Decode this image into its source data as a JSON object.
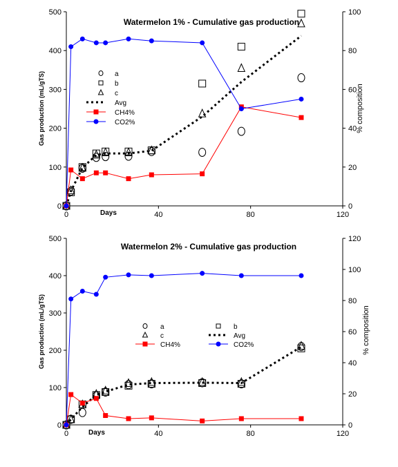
{
  "chart_data": [
    {
      "type": "line",
      "title": "Watermelon 1% - Cumulative gas production",
      "xlabel": "Days",
      "ylabel": "Gas production (mL/gTS)",
      "y2label": "% composition",
      "xlim": [
        0,
        120
      ],
      "ylim": [
        0,
        500
      ],
      "y2lim": [
        0,
        100
      ],
      "xticks": [
        "0",
        "40",
        "80",
        "120"
      ],
      "yticks": [
        "0",
        "100",
        "200",
        "300",
        "400",
        "500"
      ],
      "y2ticks": [
        "0",
        "20",
        "40",
        "60",
        "80",
        "100"
      ],
      "legend": {
        "placement": "upper-left-inside",
        "entries": [
          "a",
          "b",
          "c",
          "Avg",
          "CH4%",
          "CO2%"
        ]
      },
      "series": [
        {
          "name": "a",
          "marker": "circle-open",
          "axis": "left",
          "x": [
            0,
            2,
            7,
            13,
            17,
            27,
            37,
            59,
            76,
            102
          ],
          "y": [
            0,
            38,
            97,
            125,
            127,
            128,
            140,
            138,
            192,
            330
          ]
        },
        {
          "name": "b",
          "marker": "square-open",
          "axis": "left",
          "x": [
            0,
            2,
            7,
            13,
            17,
            27,
            37,
            59,
            76,
            102
          ],
          "y": [
            0,
            35,
            100,
            135,
            140,
            140,
            143,
            315,
            410,
            495
          ]
        },
        {
          "name": "c",
          "marker": "triangle-open",
          "axis": "left",
          "x": [
            0,
            2,
            7,
            13,
            17,
            27,
            37,
            59,
            76,
            102
          ],
          "y": [
            0,
            40,
            98,
            132,
            138,
            138,
            143,
            238,
            355,
            470
          ]
        },
        {
          "name": "Avg",
          "style": "dotted",
          "color": "#000000",
          "axis": "left",
          "x": [
            0,
            2,
            7,
            13,
            17,
            27,
            37,
            59,
            76,
            102
          ],
          "y": [
            0,
            38,
            98,
            131,
            135,
            135,
            142,
            230,
            319,
            438
          ]
        },
        {
          "name": "CH4%",
          "marker": "square",
          "color": "#ff0000",
          "axis": "right",
          "x": [
            0,
            2,
            7,
            13,
            17,
            27,
            37,
            59,
            76,
            102
          ],
          "y": [
            0,
            18.5,
            14,
            17,
            17,
            14,
            16,
            16.5,
            51,
            45.5
          ]
        },
        {
          "name": "CO2%",
          "marker": "circle",
          "color": "#0000ff",
          "axis": "right",
          "x": [
            0,
            2,
            7,
            13,
            17,
            27,
            37,
            59,
            76,
            102
          ],
          "y": [
            0,
            82,
            86,
            84,
            84,
            86,
            85,
            84,
            50,
            55
          ]
        }
      ]
    },
    {
      "type": "line",
      "title": "Watermelon 2% - Cumulative gas production",
      "xlabel": "Days",
      "ylabel": "Gas production (mL/gTS)",
      "y2label": "% composition",
      "xlim": [
        0,
        120
      ],
      "ylim": [
        0,
        500
      ],
      "y2lim": [
        0,
        120
      ],
      "xticks": [
        "0",
        "40",
        "80",
        "120"
      ],
      "yticks": [
        "0",
        "100",
        "200",
        "300",
        "400",
        "500"
      ],
      "y2ticks": [
        "0",
        "20",
        "40",
        "60",
        "80",
        "100",
        "120"
      ],
      "legend": {
        "placement": "middle-inside",
        "entries": [
          "a",
          "b",
          "c",
          "Avg",
          "CH4%",
          "CO2%"
        ]
      },
      "series": [
        {
          "name": "a",
          "marker": "circle-open",
          "axis": "left",
          "x": [
            0,
            2,
            7,
            13,
            17,
            27,
            37,
            59,
            76,
            102
          ],
          "y": [
            0,
            15,
            33,
            78,
            88,
            108,
            110,
            113,
            110,
            210
          ]
        },
        {
          "name": "b",
          "marker": "square-open",
          "axis": "left",
          "x": [
            0,
            2,
            7,
            13,
            17,
            27,
            37,
            59,
            76,
            102
          ],
          "y": [
            0,
            15,
            55,
            80,
            88,
            105,
            110,
            112,
            110,
            205
          ]
        },
        {
          "name": "c",
          "marker": "triangle-open",
          "axis": "left",
          "x": [
            0,
            2,
            7,
            13,
            17,
            27,
            37,
            59,
            76,
            102
          ],
          "y": [
            0,
            15,
            55,
            83,
            92,
            112,
            115,
            115,
            115,
            212
          ]
        },
        {
          "name": "Avg",
          "style": "dotted",
          "color": "#000000",
          "axis": "left",
          "x": [
            0,
            2,
            7,
            13,
            17,
            27,
            37,
            59,
            76,
            102
          ],
          "y": [
            0,
            15,
            48,
            80,
            89,
            108,
            112,
            113,
            112,
            209
          ]
        },
        {
          "name": "CH4%",
          "marker": "square",
          "color": "#ff0000",
          "axis": "right",
          "x": [
            0,
            2,
            7,
            13,
            17,
            27,
            37,
            59,
            76,
            102
          ],
          "y": [
            0,
            19.5,
            14,
            17,
            6,
            4,
            4.5,
            2.5,
            4,
            4
          ]
        },
        {
          "name": "CO2%",
          "marker": "circle",
          "color": "#0000ff",
          "axis": "right",
          "x": [
            0,
            2,
            7,
            13,
            17,
            27,
            37,
            59,
            76,
            102
          ],
          "y": [
            0,
            81,
            86,
            84,
            95,
            96.5,
            96,
            97.5,
            96,
            96
          ]
        }
      ]
    }
  ]
}
